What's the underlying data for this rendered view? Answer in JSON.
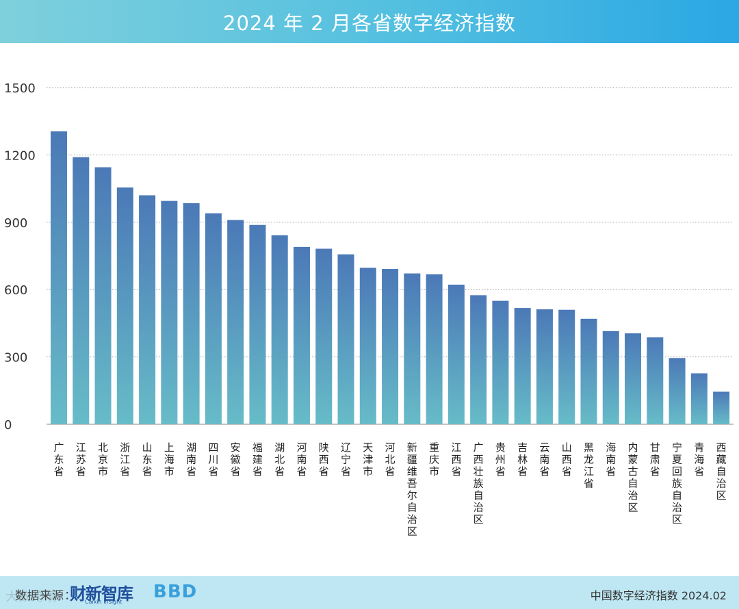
{
  "header": {
    "title": "2024 年 2 月各省数字经济指数"
  },
  "chart_data": {
    "type": "bar",
    "title": "2024 年 2 月各省数字经济指数",
    "xlabel": "",
    "ylabel": "",
    "ylim": [
      0,
      1500
    ],
    "yticks": [
      0,
      300,
      600,
      900,
      1200,
      1500
    ],
    "grid": true,
    "categories": [
      "广东省",
      "江苏省",
      "北京市",
      "浙江省",
      "山东省",
      "上海市",
      "湖南省",
      "四川省",
      "安徽省",
      "福建省",
      "湖北省",
      "河南省",
      "陕西省",
      "辽宁省",
      "天津市",
      "河北省",
      "新疆维吾尔自治区",
      "重庆市",
      "江西省",
      "广西壮族自治区",
      "贵州省",
      "吉林省",
      "云南省",
      "山西省",
      "黑龙江省",
      "海南省",
      "内蒙古自治区",
      "甘肃省",
      "宁夏回族自治区",
      "青海省",
      "西藏自治区"
    ],
    "values": [
      1305,
      1190,
      1145,
      1055,
      1020,
      995,
      985,
      940,
      910,
      888,
      842,
      790,
      782,
      757,
      697,
      692,
      672,
      668,
      622,
      575,
      550,
      518,
      512,
      510,
      470,
      415,
      405,
      387,
      295,
      227,
      145
    ]
  },
  "footer": {
    "source_label": "数据来源：",
    "brand1": "财新智库",
    "brand1_sub": "Caixin Insight",
    "brand2": "BBD",
    "watermark": "大数跨境",
    "right_text": "中国数字经济指数 2024.02"
  },
  "colors": {
    "bar_top": "#4b79b7",
    "bar_bottom": "#67bcc8",
    "grid": "#9a9a9a"
  }
}
